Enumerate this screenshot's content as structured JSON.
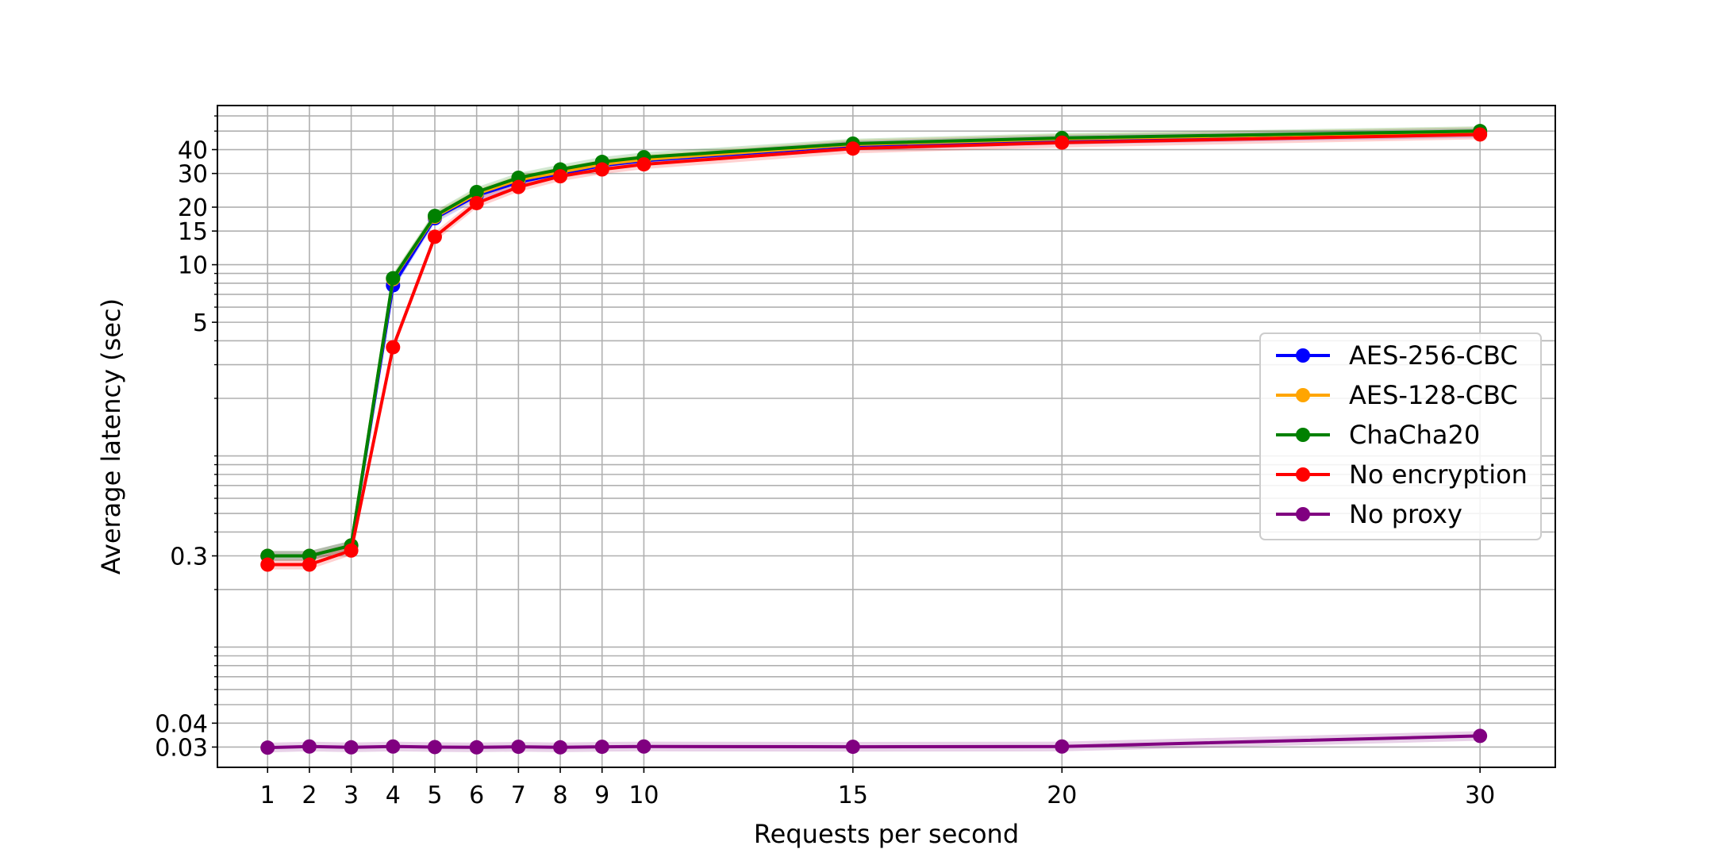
{
  "chart_data": {
    "type": "line",
    "title": "",
    "xlabel": "Requests per second",
    "ylabel": "Average latency (sec)",
    "y_scale": "log",
    "grid": true,
    "ylim": [
      0.0235,
      68
    ],
    "xlim": [
      -0.2,
      31.8
    ],
    "x_tick_values": [
      1,
      2,
      3,
      4,
      5,
      6,
      7,
      8,
      9,
      10,
      15,
      20,
      30
    ],
    "x_tick_labels": [
      "1",
      "2",
      "3",
      "4",
      "5",
      "6",
      "7",
      "8",
      "9",
      "10",
      "15",
      "20",
      "30"
    ],
    "y_tick_values": [
      0.03,
      0.04,
      0.3,
      5,
      10,
      15,
      20,
      30,
      40
    ],
    "y_tick_labels": [
      "0.03",
      "0.04",
      "0.3",
      "5",
      "10",
      "15",
      "20",
      "30",
      "40"
    ],
    "y_minor_ticks": [
      0.05,
      0.06,
      0.07,
      0.08,
      0.09,
      0.1,
      0.2,
      0.4,
      0.5,
      0.6,
      0.7,
      0.8,
      0.9,
      1,
      2,
      3,
      4,
      6,
      7,
      8,
      9,
      50,
      60
    ],
    "legend_position": "center-right",
    "x": [
      1,
      2,
      3,
      4,
      5,
      6,
      7,
      8,
      9,
      10,
      15,
      20,
      30
    ],
    "series": [
      {
        "name": "AES-256-CBC",
        "color": "#0000ff",
        "values": [
          0.3,
          0.3,
          0.34,
          7.8,
          17.5,
          23,
          27,
          30,
          33,
          35,
          42,
          45,
          49
        ]
      },
      {
        "name": "AES-128-CBC",
        "color": "#ffa500",
        "values": [
          0.3,
          0.3,
          0.34,
          8.4,
          17.8,
          23.5,
          27.8,
          30.5,
          33.5,
          35.5,
          42.5,
          45.5,
          49.5
        ]
      },
      {
        "name": "ChaCha20",
        "color": "#008000",
        "values": [
          0.3,
          0.3,
          0.34,
          8.5,
          18,
          24,
          28.5,
          31.5,
          34.5,
          36.5,
          43,
          46,
          50
        ]
      },
      {
        "name": "No encryption",
        "color": "#ff0000",
        "values": [
          0.27,
          0.27,
          0.32,
          3.7,
          14,
          21,
          25.5,
          29,
          31.5,
          33.5,
          40.5,
          43.5,
          48
        ]
      },
      {
        "name": "No proxy",
        "color": "#800080",
        "values": [
          0.0298,
          0.0302,
          0.0299,
          0.0302,
          0.03,
          0.0299,
          0.0301,
          0.0299,
          0.0301,
          0.0302,
          0.0301,
          0.0302,
          0.0343
        ]
      }
    ]
  }
}
